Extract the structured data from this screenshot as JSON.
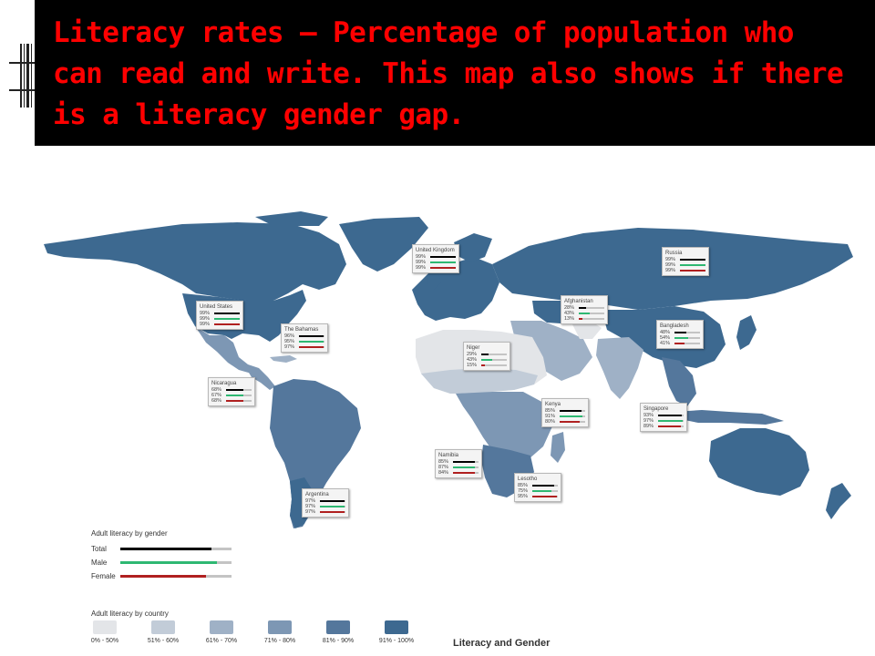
{
  "slide": {
    "title": "Literacy rates – Percentage of population who can read and write. This map also shows if there is a literacy gender gap."
  },
  "colors": {
    "title_text": "#ff0000",
    "title_background": "#000000",
    "total": "#000000",
    "male": "#2eb872",
    "female": "#b02020",
    "track": "#c4c4c4",
    "bin_0_50": "#e3e5e8",
    "bin_51_60": "#c2ccd8",
    "bin_61_70": "#9fb1c6",
    "bin_71_80": "#7d97b4",
    "bin_81_90": "#54779c",
    "bin_91_100": "#3d6990"
  },
  "callouts": [
    {
      "country": "United Kingdom",
      "total": "99%",
      "male": "99%",
      "female": "99%",
      "t": 0.99,
      "m": 0.99,
      "f": 0.99
    },
    {
      "country": "Russia",
      "total": "99%",
      "male": "99%",
      "female": "99%",
      "t": 0.99,
      "m": 0.99,
      "f": 0.99
    },
    {
      "country": "United States",
      "total": "99%",
      "male": "99%",
      "female": "99%",
      "t": 0.99,
      "m": 0.99,
      "f": 0.99
    },
    {
      "country": "Afghanistan",
      "total": "28%",
      "male": "43%",
      "female": "13%",
      "t": 0.28,
      "m": 0.43,
      "f": 0.13
    },
    {
      "country": "The Bahamas",
      "total": "96%",
      "male": "95%",
      "female": "97%",
      "t": 0.96,
      "m": 0.95,
      "f": 0.97
    },
    {
      "country": "Bangladesh",
      "total": "48%",
      "male": "54%",
      "female": "41%",
      "t": 0.48,
      "m": 0.54,
      "f": 0.41
    },
    {
      "country": "Niger",
      "total": "29%",
      "male": "43%",
      "female": "15%",
      "t": 0.29,
      "m": 0.43,
      "f": 0.15
    },
    {
      "country": "Nicaragua",
      "total": "68%",
      "male": "67%",
      "female": "68%",
      "t": 0.68,
      "m": 0.67,
      "f": 0.68
    },
    {
      "country": "Kenya",
      "total": "85%",
      "male": "91%",
      "female": "80%",
      "t": 0.85,
      "m": 0.91,
      "f": 0.8
    },
    {
      "country": "Singapore",
      "total": "93%",
      "male": "97%",
      "female": "89%",
      "t": 0.93,
      "m": 0.97,
      "f": 0.89
    },
    {
      "country": "Namibia",
      "total": "85%",
      "male": "87%",
      "female": "84%",
      "t": 0.85,
      "m": 0.87,
      "f": 0.84
    },
    {
      "country": "Lesotho",
      "total": "85%",
      "male": "75%",
      "female": "95%",
      "t": 0.85,
      "m": 0.75,
      "f": 0.95
    },
    {
      "country": "Argentina",
      "total": "97%",
      "male": "97%",
      "female": "97%",
      "t": 0.97,
      "m": 0.97,
      "f": 0.97
    }
  ],
  "legend_gender": {
    "title": "Adult literacy by gender",
    "rows": [
      {
        "label": "Total",
        "key": "total",
        "level": 0.82
      },
      {
        "label": "Male",
        "key": "male",
        "level": 0.87
      },
      {
        "label": "Female",
        "key": "female",
        "level": 0.77
      }
    ]
  },
  "legend_country": {
    "title": "Adult literacy by country",
    "bins": [
      {
        "label": "0% - 50%",
        "key": "bin_0_50"
      },
      {
        "label": "51% - 60%",
        "key": "bin_51_60"
      },
      {
        "label": "61% - 70%",
        "key": "bin_61_70"
      },
      {
        "label": "71% - 80%",
        "key": "bin_71_80"
      },
      {
        "label": "81% - 90%",
        "key": "bin_81_90"
      },
      {
        "label": "91% - 100%",
        "key": "bin_91_100"
      }
    ]
  },
  "map_title": "Literacy and Gender"
}
